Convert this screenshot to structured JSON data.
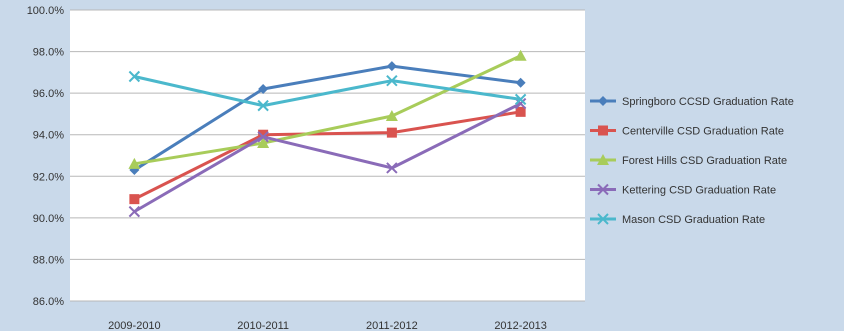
{
  "chart_data": {
    "type": "line",
    "categories": [
      "2009-2010",
      "2010-2011",
      "2011-2012",
      "2012-2013"
    ],
    "ylim": [
      86.0,
      100.0
    ],
    "yticks": [
      "86.0%",
      "88.0%",
      "90.0%",
      "92.0%",
      "94.0%",
      "96.0%",
      "98.0%",
      "100.0%"
    ],
    "grid": true,
    "legend_position": "right",
    "series": [
      {
        "name": "Springboro CCSD Graduation Rate",
        "color": "#4a7ebb",
        "marker": "diamond",
        "values": [
          92.3,
          96.2,
          97.3,
          96.5
        ]
      },
      {
        "name": "Centerville CSD Graduation Rate",
        "color": "#d9534f",
        "marker": "square",
        "values": [
          90.9,
          94.0,
          94.1,
          95.1
        ]
      },
      {
        "name": "Forest Hills CSD Graduation Rate",
        "color": "#a8cc5a",
        "marker": "triangle",
        "values": [
          92.6,
          93.6,
          94.9,
          97.8
        ]
      },
      {
        "name": "Kettering CSD Graduation Rate",
        "color": "#8a6bb8",
        "marker": "x",
        "values": [
          90.3,
          93.9,
          92.4,
          95.5
        ]
      },
      {
        "name": "Mason CSD  Graduation Rate",
        "color": "#4bb8cc",
        "marker": "x",
        "values": [
          96.8,
          95.4,
          96.6,
          95.7
        ]
      }
    ]
  }
}
